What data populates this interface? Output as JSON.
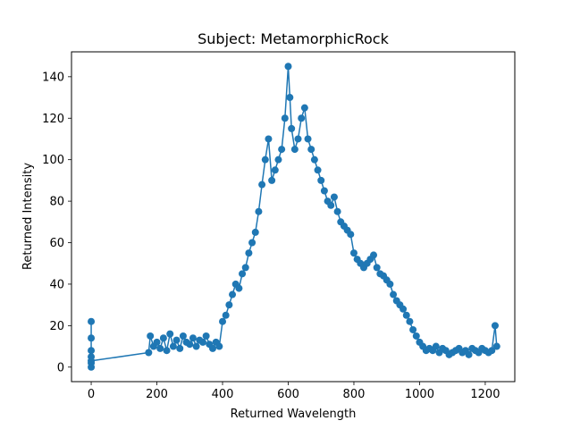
{
  "chart_data": {
    "type": "scatter",
    "title": "Subject: MetamorphicRock",
    "xlabel": "Returned Wavelength",
    "ylabel": "Returned Intensity",
    "xlim": [
      -60,
      1290
    ],
    "ylim": [
      -7,
      152
    ],
    "xticks": [
      0,
      200,
      400,
      600,
      800,
      1000,
      1200
    ],
    "yticks": [
      0,
      20,
      40,
      60,
      80,
      100,
      120,
      140
    ],
    "grid": false,
    "legend": "none",
    "marker": "circle",
    "connected": true,
    "color": "#1f77b4",
    "series": [
      {
        "x": [
          0,
          0,
          0,
          0,
          0,
          0,
          0,
          175,
          180,
          190,
          200,
          210,
          220,
          230,
          240,
          250,
          260,
          270,
          280,
          290,
          300,
          310,
          320,
          330,
          340,
          350,
          360,
          370,
          380,
          390,
          400,
          410,
          420,
          430,
          440,
          450,
          460,
          470,
          480,
          490,
          500,
          510,
          520,
          530,
          540,
          550,
          560,
          570,
          580,
          590,
          600,
          605,
          610,
          620,
          630,
          640,
          650,
          660,
          670,
          680,
          690,
          700,
          710,
          720,
          730,
          740,
          750,
          760,
          770,
          780,
          790,
          800,
          810,
          820,
          830,
          840,
          850,
          860,
          870,
          880,
          890,
          900,
          910,
          920,
          930,
          940,
          950,
          960,
          970,
          980,
          990,
          1000,
          1010,
          1020,
          1030,
          1040,
          1050,
          1060,
          1070,
          1080,
          1090,
          1100,
          1110,
          1120,
          1130,
          1140,
          1150,
          1160,
          1170,
          1180,
          1190,
          1200,
          1210,
          1220,
          1230,
          1235
        ],
        "y": [
          2,
          22,
          14,
          8,
          0,
          5,
          3,
          7,
          15,
          10,
          12,
          9,
          14,
          8,
          16,
          10,
          13,
          9,
          15,
          12,
          11,
          14,
          10,
          13,
          12,
          15,
          11,
          9,
          12,
          10,
          22,
          25,
          30,
          35,
          40,
          38,
          45,
          48,
          55,
          60,
          65,
          75,
          88,
          100,
          110,
          90,
          95,
          100,
          105,
          120,
          145,
          130,
          115,
          105,
          110,
          120,
          125,
          110,
          105,
          100,
          95,
          90,
          85,
          80,
          78,
          82,
          75,
          70,
          68,
          66,
          64,
          55,
          52,
          50,
          48,
          50,
          52,
          54,
          48,
          45,
          44,
          42,
          40,
          35,
          32,
          30,
          28,
          25,
          22,
          18,
          15,
          12,
          10,
          8,
          9,
          8,
          10,
          7,
          9,
          8,
          6,
          7,
          8,
          9,
          7,
          8,
          6,
          9,
          8,
          7,
          9,
          8,
          7,
          8,
          20,
          10
        ]
      }
    ]
  }
}
